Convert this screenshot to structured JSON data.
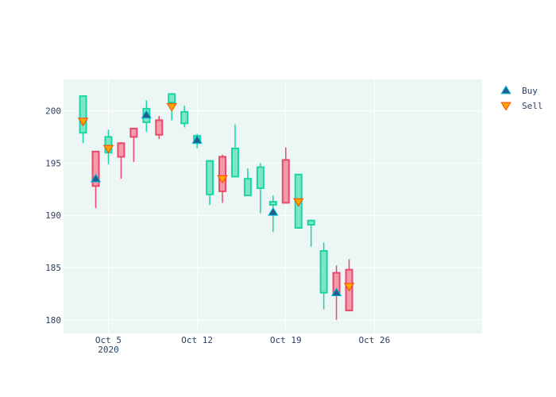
{
  "chart_data": {
    "type": "candlestick",
    "title": "",
    "xlabel": "",
    "ylabel": "",
    "x_ticks": [
      {
        "date": "2020-10-05",
        "label": "Oct 5",
        "sublabel": "2020"
      },
      {
        "date": "2020-10-12",
        "label": "Oct 12",
        "sublabel": ""
      },
      {
        "date": "2020-10-19",
        "label": "Oct 19",
        "sublabel": ""
      },
      {
        "date": "2020-10-26",
        "label": "Oct 26",
        "sublabel": ""
      }
    ],
    "y_ticks": [
      180,
      185,
      190,
      195,
      200
    ],
    "ylim": [
      178.7,
      203.0
    ],
    "xlim": [
      "2020-10-01T11:00",
      "2020-11-03T12:00"
    ],
    "grid": true,
    "legend_position": "top-right",
    "candles": [
      {
        "date": "2020-10-03",
        "open": 197.9,
        "high": 201.4,
        "low": 196.9,
        "close": 201.4
      },
      {
        "date": "2020-10-04",
        "open": 196.1,
        "high": 196.1,
        "low": 190.7,
        "close": 192.8
      },
      {
        "date": "2020-10-05",
        "open": 196.0,
        "high": 198.2,
        "low": 194.9,
        "close": 197.5
      },
      {
        "date": "2020-10-06",
        "open": 196.9,
        "high": 197.0,
        "low": 193.5,
        "close": 195.6
      },
      {
        "date": "2020-10-07",
        "open": 198.3,
        "high": 198.3,
        "low": 195.1,
        "close": 197.5
      },
      {
        "date": "2020-10-08",
        "open": 198.9,
        "high": 201.0,
        "low": 198.0,
        "close": 200.2
      },
      {
        "date": "2020-10-09",
        "open": 199.1,
        "high": 199.5,
        "low": 197.3,
        "close": 197.7
      },
      {
        "date": "2020-10-10",
        "open": 200.8,
        "high": 201.7,
        "low": 199.1,
        "close": 201.6
      },
      {
        "date": "2020-10-11",
        "open": 198.8,
        "high": 200.5,
        "low": 198.4,
        "close": 199.9
      },
      {
        "date": "2020-10-12",
        "open": 196.9,
        "high": 197.8,
        "low": 196.4,
        "close": 197.6
      },
      {
        "date": "2020-10-13",
        "open": 192.0,
        "high": 195.3,
        "low": 191.0,
        "close": 195.2
      },
      {
        "date": "2020-10-14",
        "open": 195.6,
        "high": 195.8,
        "low": 191.2,
        "close": 192.3
      },
      {
        "date": "2020-10-15",
        "open": 193.7,
        "high": 198.7,
        "low": 193.7,
        "close": 196.4
      },
      {
        "date": "2020-10-16",
        "open": 191.9,
        "high": 194.5,
        "low": 191.9,
        "close": 193.5
      },
      {
        "date": "2020-10-17",
        "open": 192.6,
        "high": 195.0,
        "low": 190.2,
        "close": 194.6
      },
      {
        "date": "2020-10-18",
        "open": 191.0,
        "high": 191.9,
        "low": 188.4,
        "close": 191.3
      },
      {
        "date": "2020-10-19",
        "open": 195.3,
        "high": 196.5,
        "low": 191.2,
        "close": 191.2
      },
      {
        "date": "2020-10-20",
        "open": 188.8,
        "high": 193.9,
        "low": 188.8,
        "close": 193.9
      },
      {
        "date": "2020-10-21",
        "open": 189.1,
        "high": 189.6,
        "low": 187.0,
        "close": 189.5
      },
      {
        "date": "2020-10-22",
        "open": 182.6,
        "high": 187.4,
        "low": 181.0,
        "close": 186.6
      },
      {
        "date": "2020-10-23",
        "open": 184.5,
        "high": 185.2,
        "low": 180.0,
        "close": 182.6
      },
      {
        "date": "2020-10-24",
        "open": 184.8,
        "high": 185.8,
        "low": 180.9,
        "close": 180.9
      }
    ],
    "signals": [
      {
        "name": "Buy",
        "marker": "triangle-up",
        "color": "#1f5f8b",
        "outline": "#00b4d8",
        "points": [
          {
            "date": "2020-10-04",
            "y": 193.5
          },
          {
            "date": "2020-10-08",
            "y": 199.6
          },
          {
            "date": "2020-10-12",
            "y": 197.2
          },
          {
            "date": "2020-10-18",
            "y": 190.3
          },
          {
            "date": "2020-10-23",
            "y": 182.6
          }
        ]
      },
      {
        "name": "Sell",
        "marker": "triangle-down",
        "color": "#ffa500",
        "outline": "#ff4500",
        "points": [
          {
            "date": "2020-10-03",
            "y": 199.0
          },
          {
            "date": "2020-10-05",
            "y": 196.4
          },
          {
            "date": "2020-10-10",
            "y": 200.4
          },
          {
            "date": "2020-10-14",
            "y": 193.5
          },
          {
            "date": "2020-10-20",
            "y": 191.3
          },
          {
            "date": "2020-10-24",
            "y": 183.2
          }
        ]
      }
    ],
    "colors": {
      "increasing_fill": "#7fe5c8",
      "increasing_line": "#1ad6a2",
      "decreasing_fill": "#f29aae",
      "decreasing_line": "#e84a6b",
      "plot_background": "#ebf6f5",
      "grid": "#ffffff",
      "text": "#2a3f5f"
    }
  }
}
